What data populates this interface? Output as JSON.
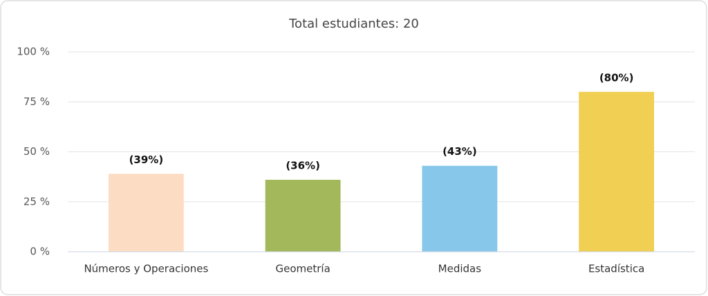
{
  "chart_data": {
    "type": "bar",
    "title": "Total estudiantes: 20",
    "categories": [
      "Números y Operaciones",
      "Geometría",
      "Medidas",
      "Estadística"
    ],
    "values": [
      39,
      36,
      43,
      80
    ],
    "value_labels": [
      "(39%)",
      "(36%)",
      "(43%)",
      "(80%)"
    ],
    "colors": [
      "#fddcc4",
      "#a2b85a",
      "#87c7ea",
      "#f0cf52"
    ],
    "ylim": [
      0,
      100
    ],
    "yticks": [
      {
        "value": 0,
        "label": "0 %"
      },
      {
        "value": 25,
        "label": "25 %"
      },
      {
        "value": 50,
        "label": "50 %"
      },
      {
        "value": 75,
        "label": "75 %"
      },
      {
        "value": 100,
        "label": "100 %"
      }
    ],
    "grid": true
  }
}
